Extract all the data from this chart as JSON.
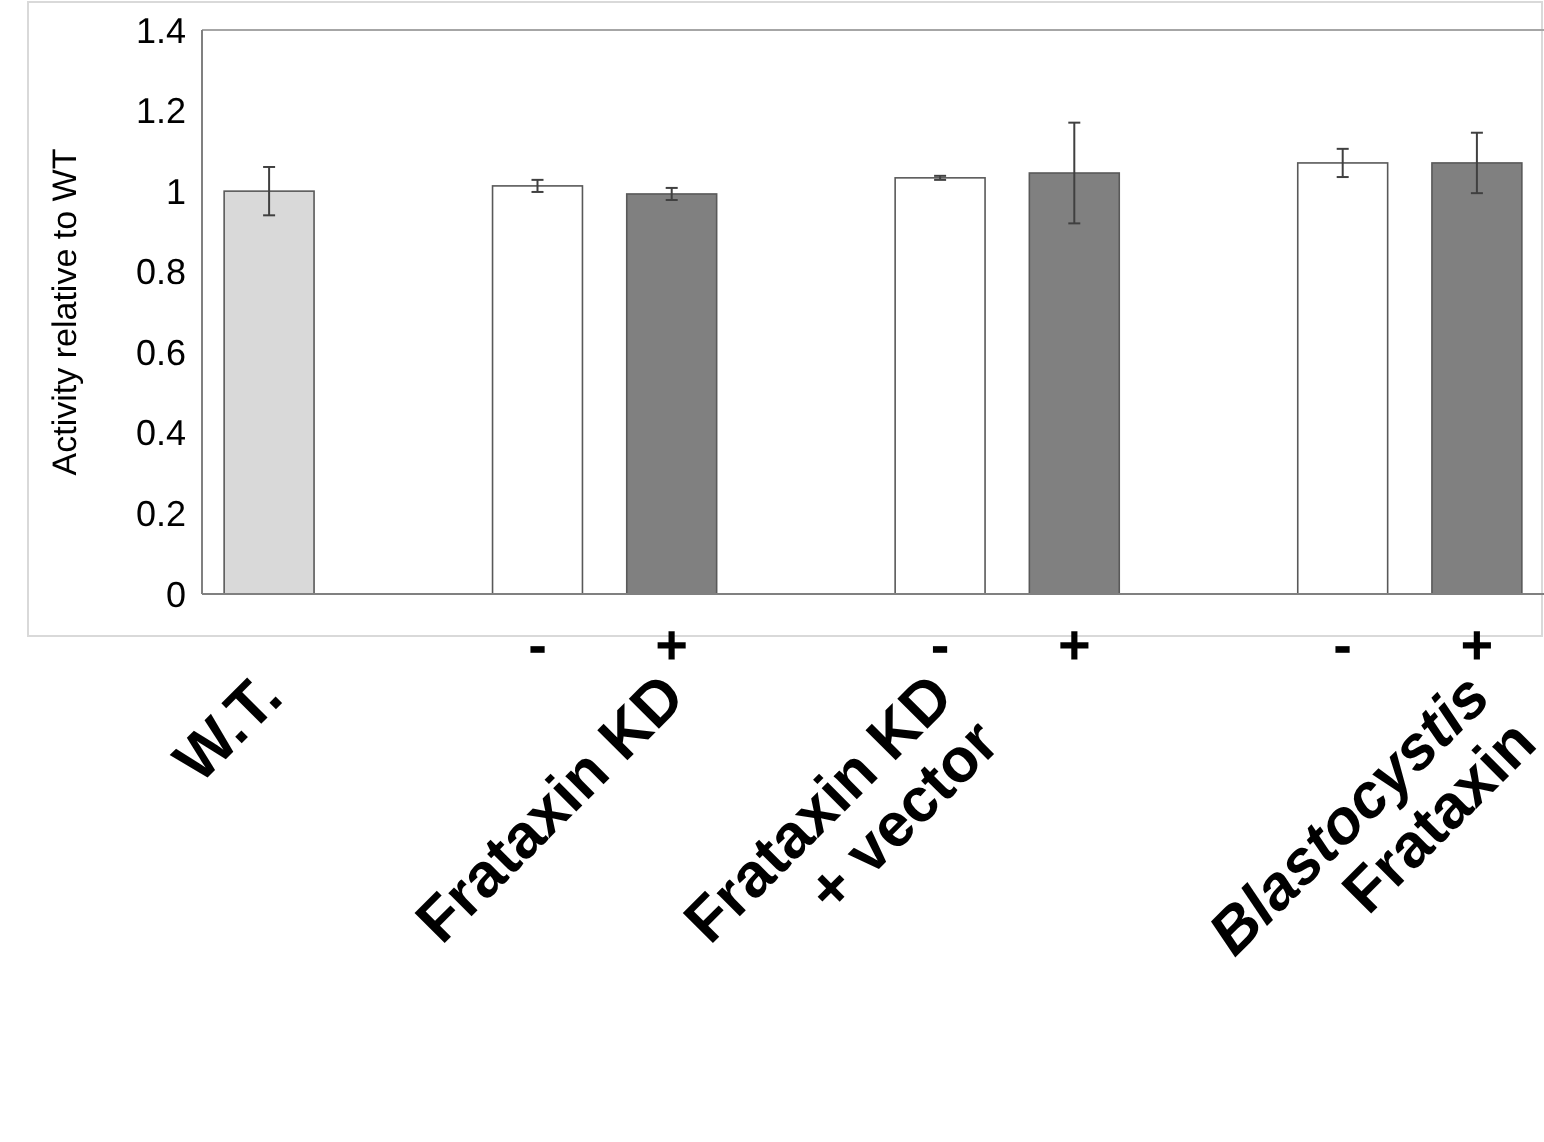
{
  "chart_data": {
    "type": "bar",
    "ylabel": "Activity relative to WT",
    "categories": [
      null,
      null,
      "-",
      "+",
      null,
      "-",
      "+",
      null,
      "-",
      "+"
    ],
    "values": [
      1.0,
      null,
      1.013,
      0.993,
      null,
      1.033,
      1.045,
      null,
      1.07,
      1.07
    ],
    "errors": [
      0.06,
      null,
      0.015,
      0.015,
      null,
      0.005,
      0.125,
      null,
      0.035,
      0.075
    ],
    "colors": [
      "#d9d9d9",
      null,
      "#ffffff",
      "#808080",
      null,
      "#ffffff",
      "#808080",
      null,
      "#ffffff",
      "#808080"
    ],
    "ylim": [
      0,
      1.4
    ],
    "yticks": [
      0,
      0.2,
      0.4,
      0.6,
      0.8,
      1,
      1.2,
      1.4
    ],
    "grid": false,
    "annotations": [
      "W.T.",
      "Frataxin KD",
      "Frataxin KD\n+ vector",
      "Blastocystis\nFrataxin"
    ]
  }
}
